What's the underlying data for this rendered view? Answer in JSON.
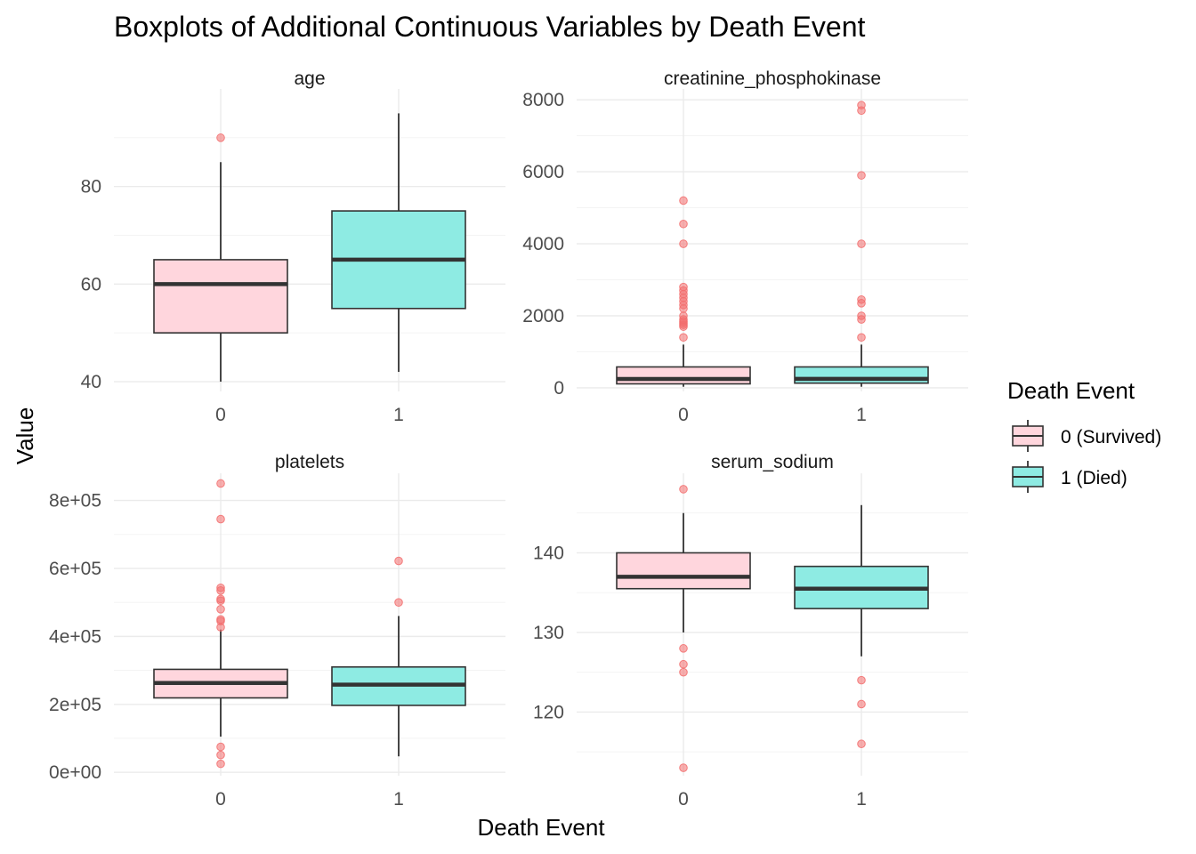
{
  "chart_data": {
    "type": "boxplot",
    "title": "Boxplots of Additional Continuous Variables by Death Event",
    "xlabel": "Death Event",
    "ylabel": "Value",
    "legend": {
      "title": "Death Event",
      "position": "right",
      "entries": [
        {
          "label": "0 (Survived)",
          "color": "#ffd6dd"
        },
        {
          "label": "1 (Died)",
          "color": "#8eebe3"
        }
      ]
    },
    "outlier_color": "#f26d6d",
    "categories": [
      "0",
      "1"
    ],
    "panels": [
      {
        "name": "age",
        "ylim": [
          38,
          100
        ],
        "ticks": [
          40,
          60,
          80
        ],
        "tick_labels": [
          "40",
          "60",
          "80"
        ],
        "minor_ticks": [
          50,
          70,
          90
        ],
        "boxes": [
          {
            "category": "0",
            "whisker_low": 40,
            "q1": 50,
            "median": 60,
            "q3": 65,
            "whisker_high": 85,
            "outliers": [
              90
            ]
          },
          {
            "category": "1",
            "whisker_low": 42,
            "q1": 55,
            "median": 65,
            "q3": 75,
            "whisker_high": 95,
            "outliers": []
          }
        ]
      },
      {
        "name": "creatinine_phosphokinase",
        "ylim": [
          -100,
          8300
        ],
        "ticks": [
          0,
          2000,
          4000,
          6000,
          8000
        ],
        "tick_labels": [
          "0",
          "2000",
          "4000",
          "6000",
          "8000"
        ],
        "minor_ticks": [
          1000,
          3000,
          5000,
          7000
        ],
        "boxes": [
          {
            "category": "0",
            "whisker_low": 30,
            "q1": 110,
            "median": 245,
            "q3": 580,
            "whisker_high": 1200,
            "outliers": [
              1400,
              1700,
              1750,
              1800,
              1850,
              1900,
              2000,
              2200,
              2300,
              2400,
              2500,
              2600,
              2700,
              2800,
              4000,
              4550,
              5200
            ]
          },
          {
            "category": "1",
            "whisker_low": 30,
            "q1": 130,
            "median": 250,
            "q3": 580,
            "whisker_high": 1200,
            "outliers": [
              1400,
              1900,
              2000,
              2350,
              2450,
              4000,
              5900,
              7700,
              7850
            ]
          }
        ]
      },
      {
        "name": "platelets",
        "ylim": [
          -10000,
          880000
        ],
        "ticks": [
          0,
          200000,
          400000,
          600000,
          800000
        ],
        "tick_labels": [
          "0e+00",
          "2e+05",
          "4e+05",
          "6e+05",
          "8e+05"
        ],
        "minor_ticks": [
          100000,
          300000,
          500000,
          700000
        ],
        "boxes": [
          {
            "category": "0",
            "whisker_low": 105000,
            "q1": 219000,
            "median": 263000,
            "q3": 303000,
            "whisker_high": 420000,
            "outliers": [
              25000,
              51000,
              75000,
              427000,
              445000,
              450000,
              480000,
              505000,
              510000,
              535000,
              543000,
              745000,
              850000
            ]
          },
          {
            "category": "1",
            "whisker_low": 47000,
            "q1": 197000,
            "median": 258000,
            "q3": 310000,
            "whisker_high": 460000,
            "outliers": [
              500000,
              622000
            ]
          }
        ]
      },
      {
        "name": "serum_sodium",
        "ylim": [
          112,
          150
        ],
        "ticks": [
          120,
          130,
          140
        ],
        "tick_labels": [
          "120",
          "130",
          "140"
        ],
        "minor_ticks": [
          115,
          125,
          135,
          145
        ],
        "boxes": [
          {
            "category": "0",
            "whisker_low": 130,
            "q1": 135.5,
            "median": 137,
            "q3": 140,
            "whisker_high": 145,
            "outliers": [
              113,
              125,
              126,
              128,
              148
            ]
          },
          {
            "category": "1",
            "whisker_low": 127,
            "q1": 133,
            "median": 135.5,
            "q3": 138.3,
            "whisker_high": 146,
            "outliers": [
              116,
              121,
              124
            ]
          }
        ]
      }
    ]
  }
}
